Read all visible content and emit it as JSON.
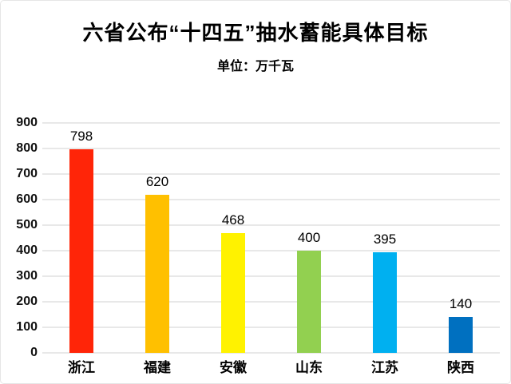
{
  "chart_data": {
    "type": "bar",
    "title": "六省公布“十四五”抽水蓄能具体目标",
    "subtitle": "单位：万千瓦",
    "categories": [
      "浙江",
      "福建",
      "安徽",
      "山东",
      "江苏",
      "陕西"
    ],
    "values": [
      798,
      620,
      468,
      400,
      395,
      140
    ],
    "bar_colors": [
      "#ff2508",
      "#ffc000",
      "#fff200",
      "#92d050",
      "#00b0f0",
      "#0070c0"
    ],
    "ylim": [
      0,
      900
    ],
    "ytick_step": 100,
    "ytick_labels": [
      "0",
      "100",
      "200",
      "300",
      "400",
      "500",
      "600",
      "700",
      "800",
      "900"
    ],
    "grid": true,
    "gridline_color": "#e8e8e8",
    "value_labels": true,
    "legend": "none",
    "xlabel": "",
    "ylabel": ""
  }
}
